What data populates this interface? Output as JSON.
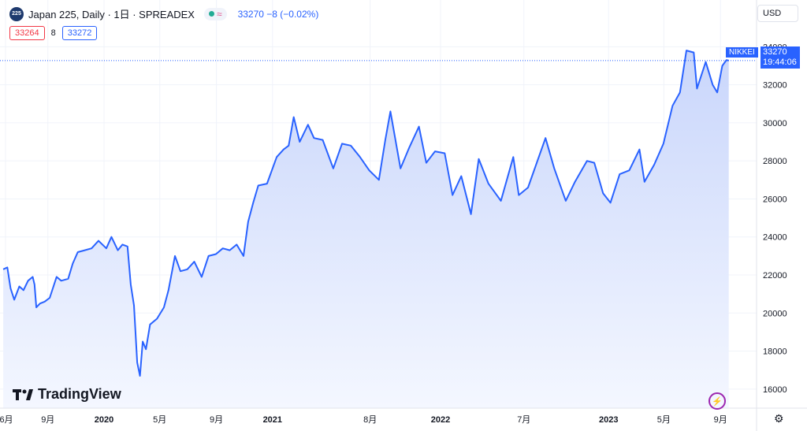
{
  "header": {
    "symbol_badge": "225",
    "title": "Japan 225, Daily · 1日 · SPREADEX",
    "status_icon": "≈",
    "ohlc": "33270 −8 (−0.02%)"
  },
  "quotes": {
    "bid": "33264",
    "spread": "8",
    "ask": "33272"
  },
  "currency": "USD",
  "price_tag": {
    "series": "NIKKEI",
    "price": "33270",
    "countdown": "19:44:06"
  },
  "logo_text": "TradingView",
  "colors": {
    "line": "#2962ff",
    "area_top": "#c9d6fb",
    "area_bottom": "#f4f7ff",
    "grid": "#f0f3fa"
  },
  "chart_data": {
    "type": "area",
    "ylim": [
      15000,
      34800
    ],
    "y_ticks": [
      16000,
      18000,
      20000,
      22000,
      24000,
      26000,
      28000,
      30000,
      32000,
      34000
    ],
    "x_ticks": [
      {
        "label": "6月",
        "date": "2019-06"
      },
      {
        "label": "9月",
        "date": "2019-09"
      },
      {
        "label": "2020",
        "date": "2020-01"
      },
      {
        "label": "5月",
        "date": "2020-05"
      },
      {
        "label": "9月",
        "date": "2020-09"
      },
      {
        "label": "2021",
        "date": "2021-01"
      },
      {
        "label": "8月",
        "date": "2021-08"
      },
      {
        "label": "2022",
        "date": "2022-01"
      },
      {
        "label": "7月",
        "date": "2022-07"
      },
      {
        "label": "2023",
        "date": "2023-01"
      },
      {
        "label": "5月",
        "date": "2023-05"
      },
      {
        "label": "9月",
        "date": "2023-09"
      }
    ],
    "last_value": 33270,
    "series": [
      {
        "values": [
          [
            "2019-05-27",
            22300
          ],
          [
            "2019-06-05",
            22400
          ],
          [
            "2019-06-12",
            21300
          ],
          [
            "2019-06-20",
            20700
          ],
          [
            "2019-07-01",
            21400
          ],
          [
            "2019-07-10",
            21200
          ],
          [
            "2019-07-20",
            21700
          ],
          [
            "2019-07-30",
            21900
          ],
          [
            "2019-08-03",
            21500
          ],
          [
            "2019-08-07",
            20300
          ],
          [
            "2019-08-15",
            20500
          ],
          [
            "2019-08-25",
            20600
          ],
          [
            "2019-09-05",
            20800
          ],
          [
            "2019-09-20",
            21900
          ],
          [
            "2019-09-30",
            21700
          ],
          [
            "2019-10-15",
            21800
          ],
          [
            "2019-10-25",
            22600
          ],
          [
            "2019-11-05",
            23200
          ],
          [
            "2019-11-20",
            23300
          ],
          [
            "2019-12-05",
            23400
          ],
          [
            "2019-12-20",
            23800
          ],
          [
            "2020-01-06",
            23400
          ],
          [
            "2020-01-17",
            24000
          ],
          [
            "2020-01-31",
            23300
          ],
          [
            "2020-02-10",
            23600
          ],
          [
            "2020-02-21",
            23500
          ],
          [
            "2020-02-28",
            21500
          ],
          [
            "2020-03-06",
            20400
          ],
          [
            "2020-03-13",
            17400
          ],
          [
            "2020-03-19",
            16700
          ],
          [
            "2020-03-25",
            18500
          ],
          [
            "2020-04-01",
            18100
          ],
          [
            "2020-04-10",
            19400
          ],
          [
            "2020-04-25",
            19700
          ],
          [
            "2020-05-10",
            20300
          ],
          [
            "2020-05-20",
            21200
          ],
          [
            "2020-06-03",
            23000
          ],
          [
            "2020-06-15",
            22200
          ],
          [
            "2020-06-30",
            22300
          ],
          [
            "2020-07-15",
            22700
          ],
          [
            "2020-07-31",
            21900
          ],
          [
            "2020-08-15",
            23000
          ],
          [
            "2020-08-31",
            23100
          ],
          [
            "2020-09-15",
            23400
          ],
          [
            "2020-09-30",
            23300
          ],
          [
            "2020-10-15",
            23600
          ],
          [
            "2020-10-30",
            23000
          ],
          [
            "2020-11-09",
            24800
          ],
          [
            "2020-11-20",
            25800
          ],
          [
            "2020-12-01",
            26700
          ],
          [
            "2020-12-20",
            26800
          ],
          [
            "2021-01-10",
            28200
          ],
          [
            "2021-01-25",
            28600
          ],
          [
            "2021-02-05",
            28800
          ],
          [
            "2021-02-16",
            30300
          ],
          [
            "2021-03-01",
            29000
          ],
          [
            "2021-03-19",
            29900
          ],
          [
            "2021-04-01",
            29200
          ],
          [
            "2021-04-20",
            29100
          ],
          [
            "2021-05-13",
            27600
          ],
          [
            "2021-06-01",
            28900
          ],
          [
            "2021-06-20",
            28800
          ],
          [
            "2021-07-10",
            28200
          ],
          [
            "2021-07-30",
            27500
          ],
          [
            "2021-08-20",
            27000
          ],
          [
            "2021-09-03",
            29100
          ],
          [
            "2021-09-14",
            30600
          ],
          [
            "2021-10-06",
            27600
          ],
          [
            "2021-10-25",
            28700
          ],
          [
            "2021-11-15",
            29800
          ],
          [
            "2021-12-01",
            27900
          ],
          [
            "2021-12-20",
            28500
          ],
          [
            "2022-01-10",
            28400
          ],
          [
            "2022-01-27",
            26200
          ],
          [
            "2022-02-15",
            27200
          ],
          [
            "2022-03-08",
            25200
          ],
          [
            "2022-03-25",
            28100
          ],
          [
            "2022-04-15",
            26800
          ],
          [
            "2022-05-12",
            25900
          ],
          [
            "2022-06-08",
            28200
          ],
          [
            "2022-06-20",
            26200
          ],
          [
            "2022-07-10",
            26600
          ],
          [
            "2022-08-17",
            29200
          ],
          [
            "2022-09-05",
            27600
          ],
          [
            "2022-09-30",
            25900
          ],
          [
            "2022-10-20",
            26900
          ],
          [
            "2022-11-15",
            28000
          ],
          [
            "2022-12-01",
            27900
          ],
          [
            "2022-12-20",
            26300
          ],
          [
            "2023-01-05",
            25800
          ],
          [
            "2023-01-25",
            27300
          ],
          [
            "2023-02-15",
            27500
          ],
          [
            "2023-03-09",
            28600
          ],
          [
            "2023-03-20",
            26900
          ],
          [
            "2023-04-10",
            27800
          ],
          [
            "2023-04-30",
            28900
          ],
          [
            "2023-05-20",
            30900
          ],
          [
            "2023-06-05",
            31600
          ],
          [
            "2023-06-19",
            33800
          ],
          [
            "2023-07-05",
            33700
          ],
          [
            "2023-07-12",
            31800
          ],
          [
            "2023-07-31",
            33200
          ],
          [
            "2023-08-15",
            32000
          ],
          [
            "2023-08-25",
            31600
          ],
          [
            "2023-09-05",
            33000
          ],
          [
            "2023-09-14",
            33300
          ],
          [
            "2023-09-19",
            33270
          ]
        ]
      }
    ]
  }
}
